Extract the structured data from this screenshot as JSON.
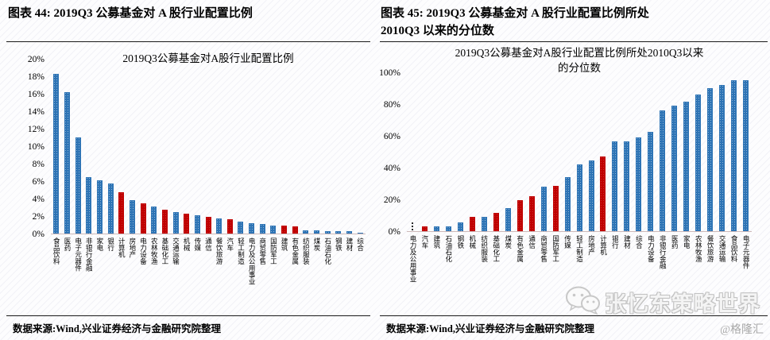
{
  "page": {
    "header_left": "图表 44: 2019Q3 公募基金对 A 股行业配置比例",
    "header_right_line1": "图表 45: 2019Q3 公募基金对 A 股行业配置比例所处",
    "header_right_line2": "2010Q3 以来的分位数",
    "footer": "数据来源:Wind,兴业证券经济与金融研究院整理",
    "watermark_text": "张忆东策略世界",
    "watermark_handle": "@格隆汇"
  },
  "colors": {
    "bar_blue": "#2E74B5",
    "bar_red": "#C00000",
    "axis_line": "#cdb9b9",
    "watermark_gray": "#c2c2c2"
  },
  "chart_data": [
    {
      "type": "bar",
      "title": "2019Q3公募基金对A股行业配置比例",
      "title_lines": [
        "2019Q3公募基金对A股行业配置比例"
      ],
      "xlabel": "",
      "ylabel": "配置比例",
      "ylim": [
        0,
        20
      ],
      "grid": false,
      "legend": "none",
      "yticks": [
        "0%",
        "2%",
        "4%",
        "6%",
        "8%",
        "10%",
        "12%",
        "14%",
        "16%",
        "18%",
        "20%"
      ],
      "categories": [
        "食品饮料",
        "医药",
        "电子元器件",
        "非银行金融",
        "家电",
        "银行",
        "计算机",
        "房地产",
        "电力设备",
        "农林牧渔",
        "基础化工",
        "交通运输",
        "机械",
        "传媒",
        "通信",
        "餐饮旅游",
        "汽车",
        "轻工制造",
        "电力及公用事业",
        "商贸零售",
        "国防军工",
        "建筑",
        "有色金属",
        "纺织服装",
        "煤炭",
        "石油石化",
        "钢铁",
        "建材",
        "综合"
      ],
      "values": [
        18.3,
        16.2,
        11.0,
        6.5,
        6.1,
        5.7,
        4.7,
        3.8,
        3.5,
        3.1,
        2.7,
        2.5,
        2.3,
        2.1,
        1.9,
        1.7,
        1.6,
        1.4,
        1.2,
        1.1,
        0.95,
        0.9,
        0.85,
        0.35,
        0.35,
        0.3,
        0.3,
        0.25,
        0.1
      ],
      "highlight_red_indices": [
        6,
        8,
        10,
        12,
        14,
        16,
        21,
        22
      ],
      "zero_marker_index": -1
    },
    {
      "type": "bar",
      "title": "2019Q3公募基金对A股行业配置比例所处2010Q3以来的分位数",
      "title_lines": [
        "2019Q3公募基金对A股行业配置比例所处2010Q3以来",
        "的分位数"
      ],
      "xlabel": "",
      "ylabel": "分位数",
      "ylim": [
        0,
        100
      ],
      "grid": false,
      "legend": "none",
      "yticks": [
        "0%",
        "20%",
        "40%",
        "60%",
        "80%",
        "100%"
      ],
      "categories": [
        "电力及公用事业",
        "汽车",
        "建筑",
        "石油石化",
        "钢铁",
        "机械",
        "纺织服装",
        "基础化工",
        "煤炭",
        "有色金属",
        "通信",
        "商贸零售",
        "国防军工",
        "传媒",
        "轻工制造",
        "房地产",
        "计算机",
        "银行",
        "建材",
        "综合",
        "电力设备",
        "非银行金融",
        "医药",
        "家电",
        "农林牧渔",
        "餐饮旅游",
        "交通运输",
        "食品饮料",
        "电子元器件"
      ],
      "values": [
        0,
        3,
        3,
        3,
        5.5,
        9,
        9,
        11.5,
        14.5,
        19.5,
        22,
        28,
        28.5,
        34,
        42,
        44.5,
        47,
        56.5,
        56.5,
        59,
        62.5,
        76,
        79,
        81.5,
        86,
        90,
        92,
        95,
        95
      ],
      "highlight_red_indices": [
        1,
        5,
        7,
        9,
        10,
        12,
        16
      ],
      "zero_marker_index": 0
    }
  ]
}
